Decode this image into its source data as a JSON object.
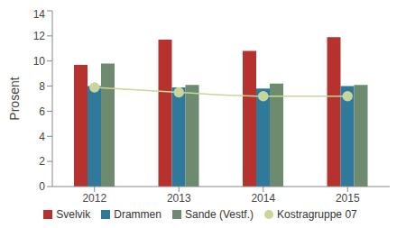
{
  "chart_data": {
    "type": "bar",
    "categories": [
      "2012",
      "2013",
      "2014",
      "2015"
    ],
    "y_label": "Prosent",
    "ylim": [
      0,
      14
    ],
    "yticks": [
      0,
      2,
      4,
      6,
      8,
      10,
      12,
      14
    ],
    "grid": false,
    "legend": "bottom",
    "series": [
      {
        "name": "Svelvik",
        "color": "#b5322f",
        "values": [
          9.7,
          11.7,
          10.8,
          11.9
        ]
      },
      {
        "name": "Drammen",
        "color": "#2f7a9b",
        "values": [
          8.0,
          7.9,
          7.8,
          8.0
        ]
      },
      {
        "name": "Sande (Vestf.)",
        "color": "#6e8a6f",
        "values": [
          9.8,
          8.1,
          8.2,
          8.1
        ]
      },
      {
        "name": "Kostragruppe 07",
        "color": "#c8d69b",
        "type": "line",
        "marker": "circle",
        "values": [
          7.9,
          7.5,
          7.2,
          7.2
        ]
      }
    ]
  }
}
